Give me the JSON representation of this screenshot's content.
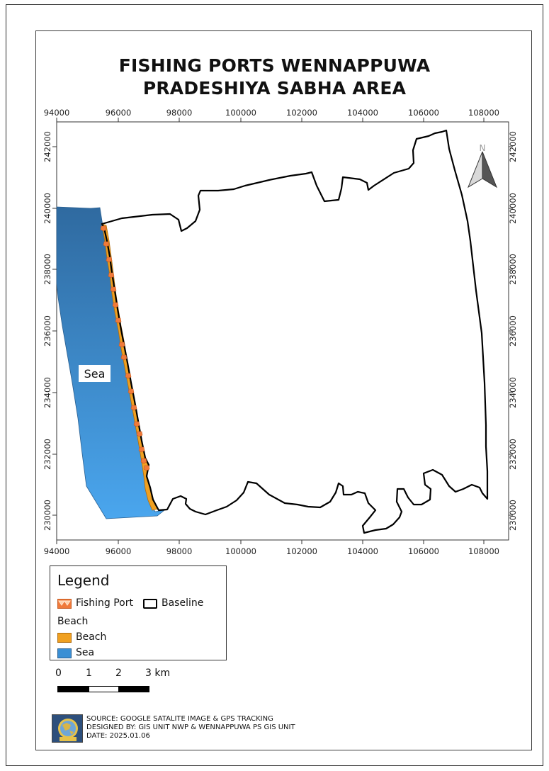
{
  "map": {
    "title_line1": "FISHING PORTS WENNAPPUWA",
    "title_line2": "PRADESHIYA SABHA AREA",
    "x_ticks": [
      "94000",
      "96000",
      "98000",
      "100000",
      "102000",
      "104000",
      "106000",
      "108000"
    ],
    "y_ticks": [
      "242000",
      "240000",
      "238000",
      "236000",
      "234000",
      "232000",
      "230000"
    ],
    "sea_label": "Sea",
    "north_label": "N"
  },
  "legend": {
    "title": "Legend",
    "fishing_port": "Fishing Port",
    "baseline": "Baseline",
    "group": "Beach",
    "beach": "Beach",
    "sea": "Sea"
  },
  "scalebar": {
    "labels": [
      "0",
      "1",
      "2",
      "3 km"
    ]
  },
  "credits": {
    "source": "SOURCE: GOOGLE SATALITE IMAGE & GPS TRACKING",
    "designed_by": "DESIGNED BY: GIS UNIT NWP & WENNAPPUWA PS GIS UNIT",
    "date": "DATE: 2025.01.06"
  },
  "colors": {
    "sea_top": "#2f6da6",
    "sea_bottom": "#4ca3e6",
    "beach": "#f0a020",
    "fishing_port": "#f07a3a",
    "baseline": "#000000"
  }
}
